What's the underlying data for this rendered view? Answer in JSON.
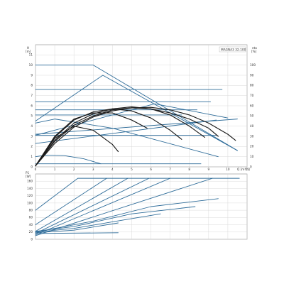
{
  "chart_data": [
    {
      "type": "line",
      "model_label": "MAGNA3 32-100",
      "left_axis": {
        "title": "H",
        "unit": "[m]",
        "ylim": [
          0,
          12
        ],
        "ticks": [
          0,
          1,
          2,
          3,
          4,
          5,
          6,
          7,
          8,
          9,
          10,
          11
        ]
      },
      "right_axis": {
        "title": "eta",
        "unit": "[%]",
        "ylim": [
          0,
          120
        ],
        "ticks": [
          0,
          10,
          20,
          30,
          40,
          50,
          60,
          70,
          80,
          90,
          100
        ]
      },
      "x_axis": {
        "title": "Q [m³/h]",
        "xlim": [
          0,
          11
        ],
        "ticks": [
          0,
          1,
          2,
          3,
          4,
          5,
          6,
          7,
          8,
          9,
          10,
          11
        ],
        "tick_labels": [
          "0",
          "1",
          "2",
          "3",
          "4",
          "5",
          "6",
          "7",
          "8",
          "9",
          "10",
          "11"
        ]
      },
      "grid": true,
      "colors": {
        "pump_curve": "#1a1a1a",
        "control_curve": "#2e6c99",
        "grid": "#d2d2d2"
      },
      "series": [
        {
          "kind": "control",
          "x": [
            0,
            3.0,
            10.5
          ],
          "y": [
            10,
            10,
            1.6
          ]
        },
        {
          "kind": "control",
          "x": [
            0,
            9.7
          ],
          "y": [
            7.6,
            7.6
          ]
        },
        {
          "kind": "control",
          "x": [
            0,
            9.1
          ],
          "y": [
            6.4,
            6.4
          ]
        },
        {
          "kind": "control",
          "x": [
            0,
            8.4
          ],
          "y": [
            5.6,
            5.6
          ]
        },
        {
          "kind": "control",
          "x": [
            0,
            7.6
          ],
          "y": [
            5.1,
            5.1
          ]
        },
        {
          "kind": "control",
          "x": [
            0,
            3.5,
            10.5
          ],
          "y": [
            4.5,
            9.0,
            1.6
          ]
        },
        {
          "kind": "control",
          "x": [
            0,
            6.2,
            10.0
          ],
          "y": [
            3.1,
            6.2,
            4.8
          ]
        },
        {
          "kind": "control",
          "x": [
            0,
            9.4
          ],
          "y": [
            2.3,
            4.6
          ]
        },
        {
          "kind": "control",
          "x": [
            0,
            10.5
          ],
          "y": [
            3.2,
            4.7
          ]
        },
        {
          "kind": "control",
          "x": [
            0,
            9.4
          ],
          "y": [
            3.1,
            3.1
          ]
        },
        {
          "kind": "control",
          "x": [
            0,
            1.0,
            4.0,
            9.5
          ],
          "y": [
            4.3,
            4.7,
            3.8,
            1.0
          ]
        },
        {
          "kind": "control",
          "x": [
            0,
            0.5,
            1.5,
            2.5,
            3.4
          ],
          "y": [
            1.0,
            1.15,
            1.1,
            0.8,
            0.3
          ]
        },
        {
          "kind": "control",
          "x": [
            0,
            8.6
          ],
          "y": [
            0.3,
            0.3
          ]
        },
        {
          "kind": "pump",
          "x": [
            0,
            1,
            2,
            3,
            4,
            5,
            6,
            7,
            8,
            9,
            10,
            10.4
          ],
          "y": [
            0.1,
            2.3,
            3.9,
            4.9,
            5.5,
            5.8,
            5.85,
            5.6,
            5.1,
            4.3,
            3.2,
            2.6
          ]
        },
        {
          "kind": "pump",
          "x": [
            0,
            1,
            2,
            3,
            4,
            5,
            6,
            7,
            8,
            8.8
          ],
          "y": [
            0.1,
            2.6,
            4.3,
            5.2,
            5.7,
            5.9,
            5.7,
            5.1,
            4.0,
            2.9
          ]
        },
        {
          "kind": "pump",
          "x": [
            0,
            1,
            2,
            3,
            4,
            5,
            6,
            7,
            7.6
          ],
          "y": [
            0.1,
            2.9,
            4.6,
            5.4,
            5.7,
            5.5,
            4.8,
            3.6,
            2.7
          ]
        },
        {
          "kind": "pump",
          "x": [
            0,
            1,
            2,
            3,
            4,
            5,
            5.8
          ],
          "y": [
            0.1,
            3.0,
            4.7,
            5.3,
            5.3,
            4.6,
            3.8
          ]
        },
        {
          "kind": "pump",
          "x": [
            0,
            1,
            2,
            3,
            4,
            4.3
          ],
          "y": [
            0.1,
            2.8,
            4.0,
            3.6,
            2.2,
            1.5
          ]
        },
        {
          "kind": "pump",
          "x": [
            0,
            1,
            2,
            3,
            4,
            5,
            6,
            7,
            8,
            9,
            9.5
          ],
          "y": [
            0.1,
            2.5,
            4.1,
            5.0,
            5.6,
            5.8,
            5.7,
            5.3,
            4.7,
            3.8,
            3.0
          ]
        }
      ]
    },
    {
      "type": "line",
      "left_axis": {
        "title": "P1",
        "unit": "[W]",
        "ylim": [
          0,
          180
        ],
        "ticks": [
          0,
          20,
          40,
          60,
          80,
          100,
          120,
          140,
          160
        ]
      },
      "x_axis": {
        "xlim": [
          0,
          11
        ],
        "ticks": [
          0,
          1,
          2,
          3,
          4,
          5,
          6,
          7,
          8,
          9,
          10,
          11
        ]
      },
      "grid": true,
      "colors": {
        "line": "#2e6c99",
        "grid": "#d2d2d2"
      },
      "series": [
        {
          "x": [
            0,
            2.2,
            10.6
          ],
          "y": [
            80,
            168,
            168
          ]
        },
        {
          "x": [
            0,
            3.7
          ],
          "y": [
            40,
            168
          ]
        },
        {
          "x": [
            0,
            4.8
          ],
          "y": [
            22,
            168
          ]
        },
        {
          "x": [
            0,
            5.9
          ],
          "y": [
            16,
            168
          ]
        },
        {
          "x": [
            0,
            7.0
          ],
          "y": [
            12,
            168
          ]
        },
        {
          "x": [
            0,
            9.2
          ],
          "y": [
            10,
            168
          ]
        },
        {
          "x": [
            0,
            3,
            6,
            9.5
          ],
          "y": [
            20,
            50,
            90,
            112
          ]
        },
        {
          "x": [
            0,
            2,
            5,
            8.3
          ],
          "y": [
            22,
            35,
            70,
            90
          ]
        },
        {
          "x": [
            0,
            2,
            4,
            6.5
          ],
          "y": [
            20,
            30,
            48,
            70
          ]
        },
        {
          "x": [
            0,
            2,
            4.3
          ],
          "y": [
            18,
            25,
            45
          ]
        },
        {
          "x": [
            0,
            4.3
          ],
          "y": [
            16,
            18
          ]
        }
      ]
    }
  ]
}
